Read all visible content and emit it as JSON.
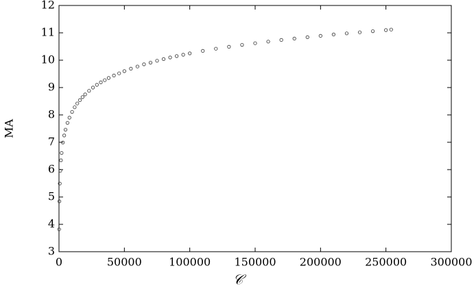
{
  "chart_data": {
    "type": "scatter",
    "x_label": "𝒞",
    "y_label": "MA",
    "xlim": [
      0,
      300000
    ],
    "ylim": [
      3,
      12
    ],
    "xticks": [
      0,
      50000,
      100000,
      150000,
      200000,
      250000,
      300000
    ],
    "yticks": [
      3,
      4,
      5,
      6,
      7,
      8,
      9,
      10,
      11,
      12
    ],
    "grid": false,
    "color": "#333333",
    "x": [
      100,
      300,
      600,
      1000,
      1500,
      2000,
      3000,
      4000,
      5000,
      6500,
      8000,
      10000,
      12000,
      14000,
      16000,
      18000,
      20000,
      23000,
      26000,
      29000,
      32000,
      35000,
      38000,
      42000,
      46000,
      50000,
      55000,
      60000,
      65000,
      70000,
      75000,
      80000,
      85000,
      90000,
      95000,
      100000,
      110000,
      120000,
      130000,
      140000,
      150000,
      160000,
      170000,
      180000,
      190000,
      200000,
      210000,
      220000,
      230000,
      240000,
      250000,
      254000
    ],
    "values": [
      3.82,
      4.84,
      5.49,
      5.96,
      6.34,
      6.61,
      6.99,
      7.25,
      7.46,
      7.71,
      7.9,
      8.11,
      8.28,
      8.42,
      8.54,
      8.65,
      8.75,
      8.88,
      9.0,
      9.1,
      9.19,
      9.27,
      9.35,
      9.44,
      9.52,
      9.6,
      9.69,
      9.77,
      9.85,
      9.91,
      9.98,
      10.04,
      10.1,
      10.15,
      10.2,
      10.25,
      10.34,
      10.42,
      10.49,
      10.56,
      10.62,
      10.68,
      10.74,
      10.79,
      10.84,
      10.89,
      10.94,
      10.98,
      11.02,
      11.06,
      11.1,
      11.12
    ]
  }
}
